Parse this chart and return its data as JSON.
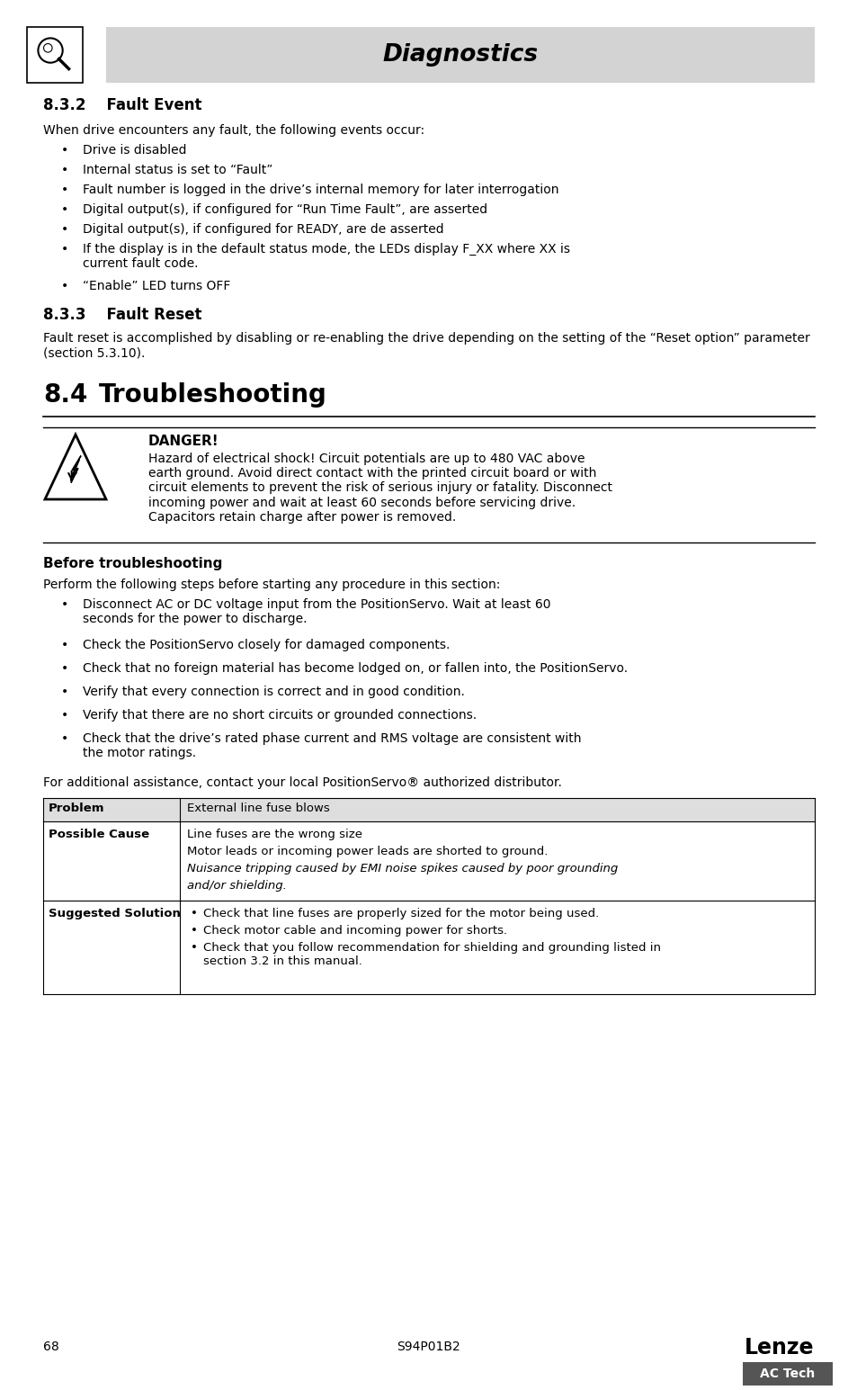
{
  "page_bg": "#ffffff",
  "header_bg": "#d3d3d3",
  "header_text": "Diagnostics",
  "section_832_title": "8.3.2    Fault Event",
  "section_832_intro": "When drive encounters any fault, the following events occur:",
  "section_832_bullets": [
    "Drive is disabled",
    "Internal status is set to “Fault”",
    "Fault number is logged in the drive’s internal memory for later interrogation",
    "Digital output(s), if configured for “Run Time Fault”, are asserted",
    "Digital output(s), if configured for READY, are de asserted",
    "If the display is in the default status mode, the LEDs display F_XX where XX is\ncurrent fault code.",
    "“Enable” LED turns OFF"
  ],
  "section_833_title": "8.3.3    Fault Reset",
  "section_833_body": "Fault reset is accomplished by disabling or re-enabling the drive depending on the setting of the “Reset option” parameter (section 5.3.10).",
  "section_84_title": "8.4    Troubleshooting",
  "danger_title": "DANGER!",
  "danger_body": "Hazard of electrical shock! Circuit potentials are up to 480 VAC above\nearth ground. Avoid direct contact with the printed circuit board or with\ncircuit elements to prevent the risk of serious injury or fatality. Disconnect\nincoming power and wait at least 60 seconds before servicing drive.\nCapacitors retain charge after power is removed.",
  "before_troubleshooting_title": "Before troubleshooting",
  "before_troubleshooting_intro": "Perform the following steps before starting any procedure in this section:",
  "before_troubleshooting_bullets": [
    "Disconnect AC or DC voltage input from the PositionServo. Wait at least 60\nseconds for the power to discharge.",
    "Check the PositionServo closely for damaged components.",
    "Check that no foreign material has become lodged on, or fallen into, the PositionServo.",
    "Verify that every connection is correct and in good condition.",
    "Verify that there are no short circuits or grounded connections.",
    "Check that the drive’s rated phase current and RMS voltage are consistent with\nthe motor ratings."
  ],
  "additional_assistance": "For additional assistance, contact your local PositionServo® authorized distributor.",
  "table_col1_header": "Problem",
  "table_col2_header": "External line fuse blows",
  "table_row1_col1": "Possible Cause",
  "table_row1_col2_lines": [
    [
      "normal",
      "Line fuses are the wrong size"
    ],
    [
      "normal",
      "Motor leads or incoming power leads are shorted to ground."
    ],
    [
      "italic",
      "Nuisance tripping caused by EMI noise spikes caused by poor grounding"
    ],
    [
      "italic",
      "and/or shielding."
    ]
  ],
  "table_row2_col1": "Suggested Solution",
  "table_row2_col2_bullets": [
    "Check that line fuses are properly sized for the motor being used.",
    "Check motor cable and incoming power for shorts.",
    "Check that you follow recommendation for shielding and grounding listed in\nsection 3.2 in this manual."
  ],
  "footer_page": "68",
  "footer_model": "S94P01B2",
  "footer_brand": "Lenze",
  "footer_sub": "AC Tech",
  "footer_sub_bg": "#555555"
}
